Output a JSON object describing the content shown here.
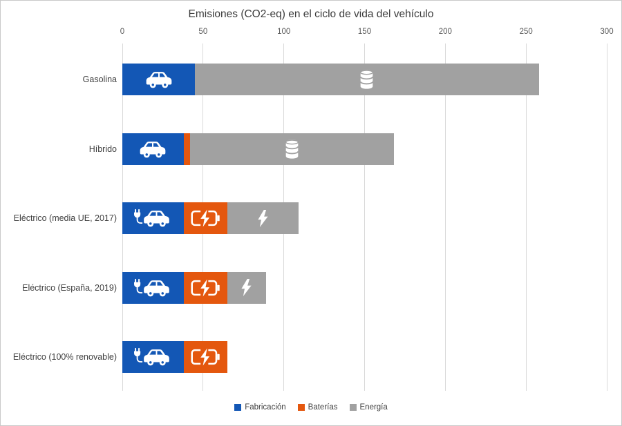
{
  "chart_data": {
    "type": "bar",
    "orientation": "horizontal",
    "stacked": true,
    "title": "Emisiones (CO2-eq) en el ciclo de vida del vehículo",
    "categories": [
      "Gasolina",
      "Híbrido",
      "Eléctrico (media UE, 2017)",
      "Eléctrico (España, 2019)",
      "Eléctrico (100% renovable)"
    ],
    "series": [
      {
        "name": "Fabricación",
        "color": "#1357b5",
        "values": [
          45,
          38,
          38,
          38,
          38
        ]
      },
      {
        "name": "Baterías",
        "color": "#e4570e",
        "values": [
          0,
          4,
          27,
          27,
          27
        ]
      },
      {
        "name": "Energía",
        "color": "#a1a1a1",
        "values": [
          213,
          126,
          44,
          24,
          0
        ]
      }
    ],
    "totals": [
      258,
      168,
      109,
      89,
      65
    ],
    "xlim": [
      0,
      300
    ],
    "x_ticks": [
      0,
      50,
      100,
      150,
      200,
      250,
      300
    ],
    "grid": "vertical",
    "legend_position": "bottom",
    "legend_labels": [
      "Fabricación",
      "Baterías",
      "Energía"
    ],
    "segment_icons": [
      [
        "car-icon",
        null,
        "oil-barrel-icon"
      ],
      [
        "car-icon",
        null,
        "oil-barrel-icon"
      ],
      [
        "electric-car-icon",
        "battery-charging-icon",
        "lightning-bolt-icon"
      ],
      [
        "electric-car-icon",
        "battery-charging-icon",
        "lightning-bolt-icon"
      ],
      [
        "electric-car-icon",
        "battery-charging-icon",
        null
      ]
    ]
  },
  "colors": {
    "gridline": "#d9d9d9",
    "title_text": "#3b3b3b",
    "tick_text": "#595959",
    "label_text": "#3f3f3f",
    "background": "#ffffff",
    "border": "#c9c9c9",
    "icon": "#ffffff"
  }
}
